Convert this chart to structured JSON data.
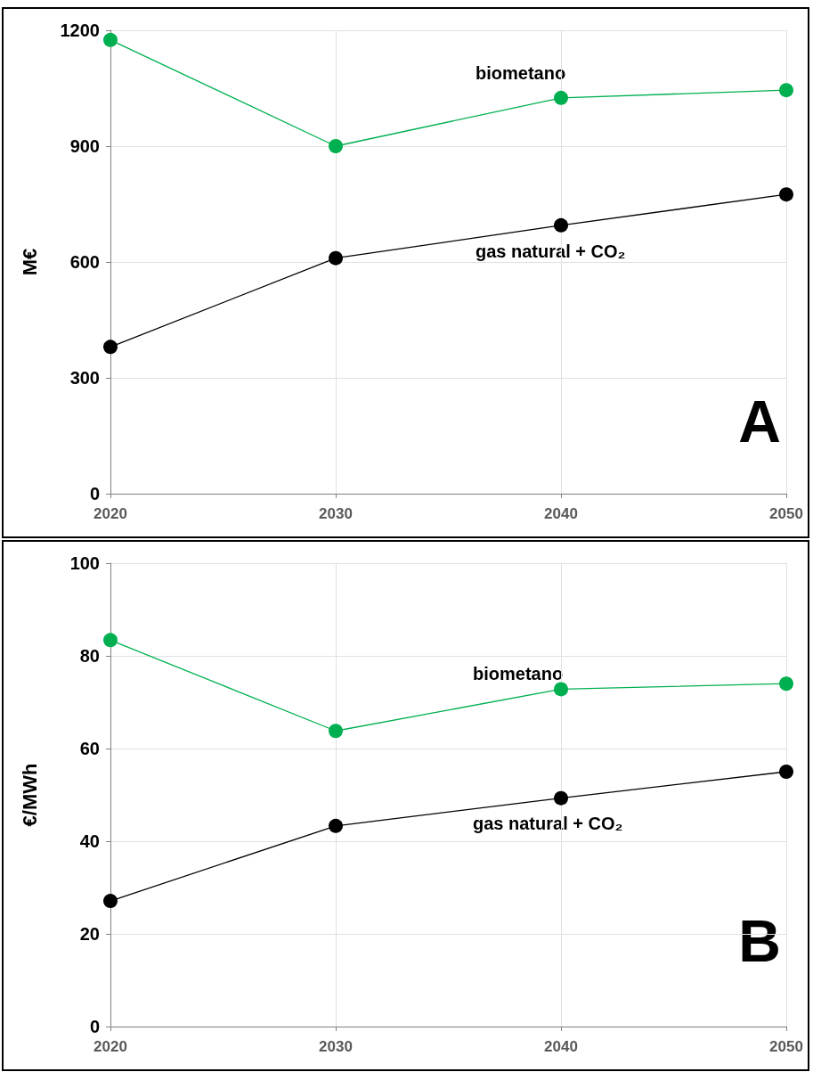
{
  "chart_data": [
    {
      "type": "line",
      "ylabel": "M€",
      "x": [
        2020,
        2030,
        2040,
        2050
      ],
      "xlim": [
        2020,
        2050
      ],
      "xticks": [
        2020,
        2030,
        2040,
        2050
      ],
      "ylim": [
        0,
        1200
      ],
      "yticks": [
        0,
        300,
        600,
        900,
        1200
      ],
      "grid": true,
      "marker": "circle",
      "line_style": "solid",
      "annotations": [
        "A"
      ],
      "series": [
        {
          "name": "biometano",
          "color": "#00b050",
          "values": [
            1175,
            900,
            1025,
            1045
          ]
        },
        {
          "name": "gas natural + CO₂",
          "color": "#000000",
          "values": [
            380,
            610,
            695,
            775
          ]
        }
      ]
    },
    {
      "type": "line",
      "ylabel": "€/MWh",
      "x": [
        2020,
        2030,
        2040,
        2050
      ],
      "xlim": [
        2020,
        2050
      ],
      "xticks": [
        2020,
        2030,
        2040,
        2050
      ],
      "ylim": [
        0,
        100
      ],
      "yticks": [
        0,
        20,
        40,
        60,
        80,
        100
      ],
      "grid": true,
      "marker": "circle",
      "line_style": "solid",
      "annotations": [
        "B"
      ],
      "series": [
        {
          "name": "biometano",
          "color": "#00b050",
          "values": [
            83.4,
            63.8,
            72.8,
            74.0
          ]
        },
        {
          "name": "gas natural + CO₂",
          "color": "#000000",
          "values": [
            27.1,
            43.3,
            49.3,
            55.0
          ]
        }
      ]
    }
  ]
}
